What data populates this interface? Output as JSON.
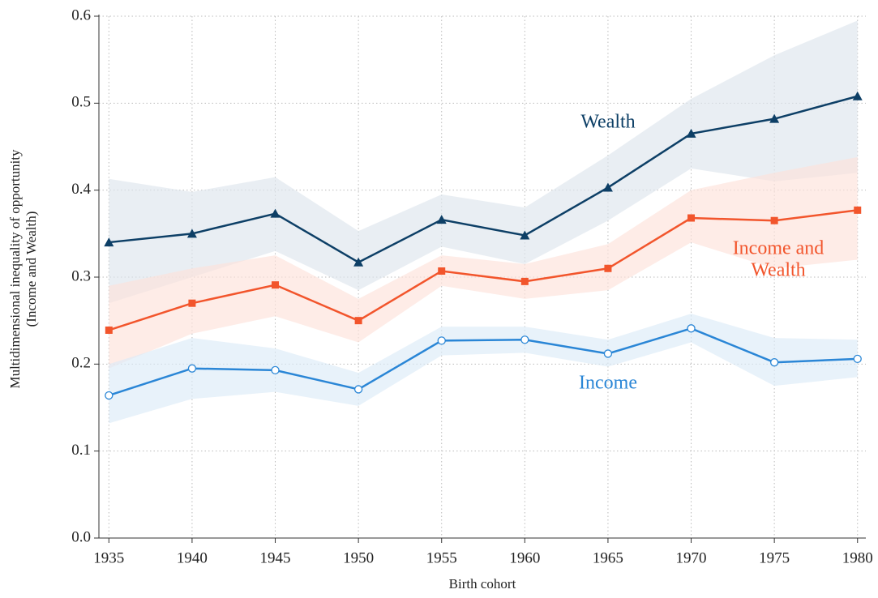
{
  "chart_data": {
    "type": "line",
    "xlabel": "Birth cohort",
    "ylabel": [
      "Multidimensional inequality of opportunity",
      "(Income and Wealth)"
    ],
    "x": [
      1935,
      1940,
      1945,
      1950,
      1955,
      1960,
      1965,
      1970,
      1975,
      1980
    ],
    "xlim": [
      1934.4,
      1980.5
    ],
    "xticks": [
      1935,
      1940,
      1945,
      1950,
      1955,
      1960,
      1965,
      1970,
      1975,
      1980
    ],
    "ylim": [
      0,
      0.6
    ],
    "yticks": [
      {
        "value": 0,
        "label": "0.0"
      },
      0.1,
      0.2,
      0.3,
      0.4,
      0.5,
      0.6
    ],
    "grid": true,
    "series": [
      {
        "label": [
          "Wealth"
        ],
        "color": "#0d3f66",
        "band_color": "#dde5ec",
        "marker": "triangle",
        "values": [
          0.34,
          0.35,
          0.373,
          0.317,
          0.366,
          0.348,
          0.403,
          0.465,
          0.482,
          0.508
        ],
        "upper": [
          0.413,
          0.398,
          0.415,
          0.353,
          0.395,
          0.38,
          0.44,
          0.505,
          0.555,
          0.595
        ],
        "lower": [
          0.27,
          0.3,
          0.33,
          0.285,
          0.335,
          0.315,
          0.365,
          0.425,
          0.41,
          0.42
        ]
      },
      {
        "label": [
          "Income and",
          "Wealth"
        ],
        "color": "#f2552c",
        "band_color": "#fde2da",
        "marker": "square",
        "values": [
          0.239,
          0.27,
          0.291,
          0.25,
          0.307,
          0.295,
          0.31,
          0.368,
          0.365,
          0.377
        ],
        "upper": [
          0.29,
          0.31,
          0.325,
          0.275,
          0.325,
          0.315,
          0.338,
          0.4,
          0.42,
          0.438
        ],
        "lower": [
          0.195,
          0.235,
          0.255,
          0.225,
          0.29,
          0.275,
          0.285,
          0.34,
          0.31,
          0.32
        ]
      },
      {
        "label": [
          "Income"
        ],
        "color": "#2a86d6",
        "band_color": "#dcebf8",
        "marker": "circle",
        "values": [
          0.164,
          0.195,
          0.193,
          0.171,
          0.227,
          0.228,
          0.212,
          0.241,
          0.202,
          0.206
        ],
        "upper": [
          0.2,
          0.23,
          0.218,
          0.19,
          0.243,
          0.243,
          0.228,
          0.258,
          0.23,
          0.228
        ],
        "lower": [
          0.132,
          0.16,
          0.168,
          0.152,
          0.21,
          0.213,
          0.197,
          0.225,
          0.175,
          0.185
        ]
      }
    ]
  }
}
